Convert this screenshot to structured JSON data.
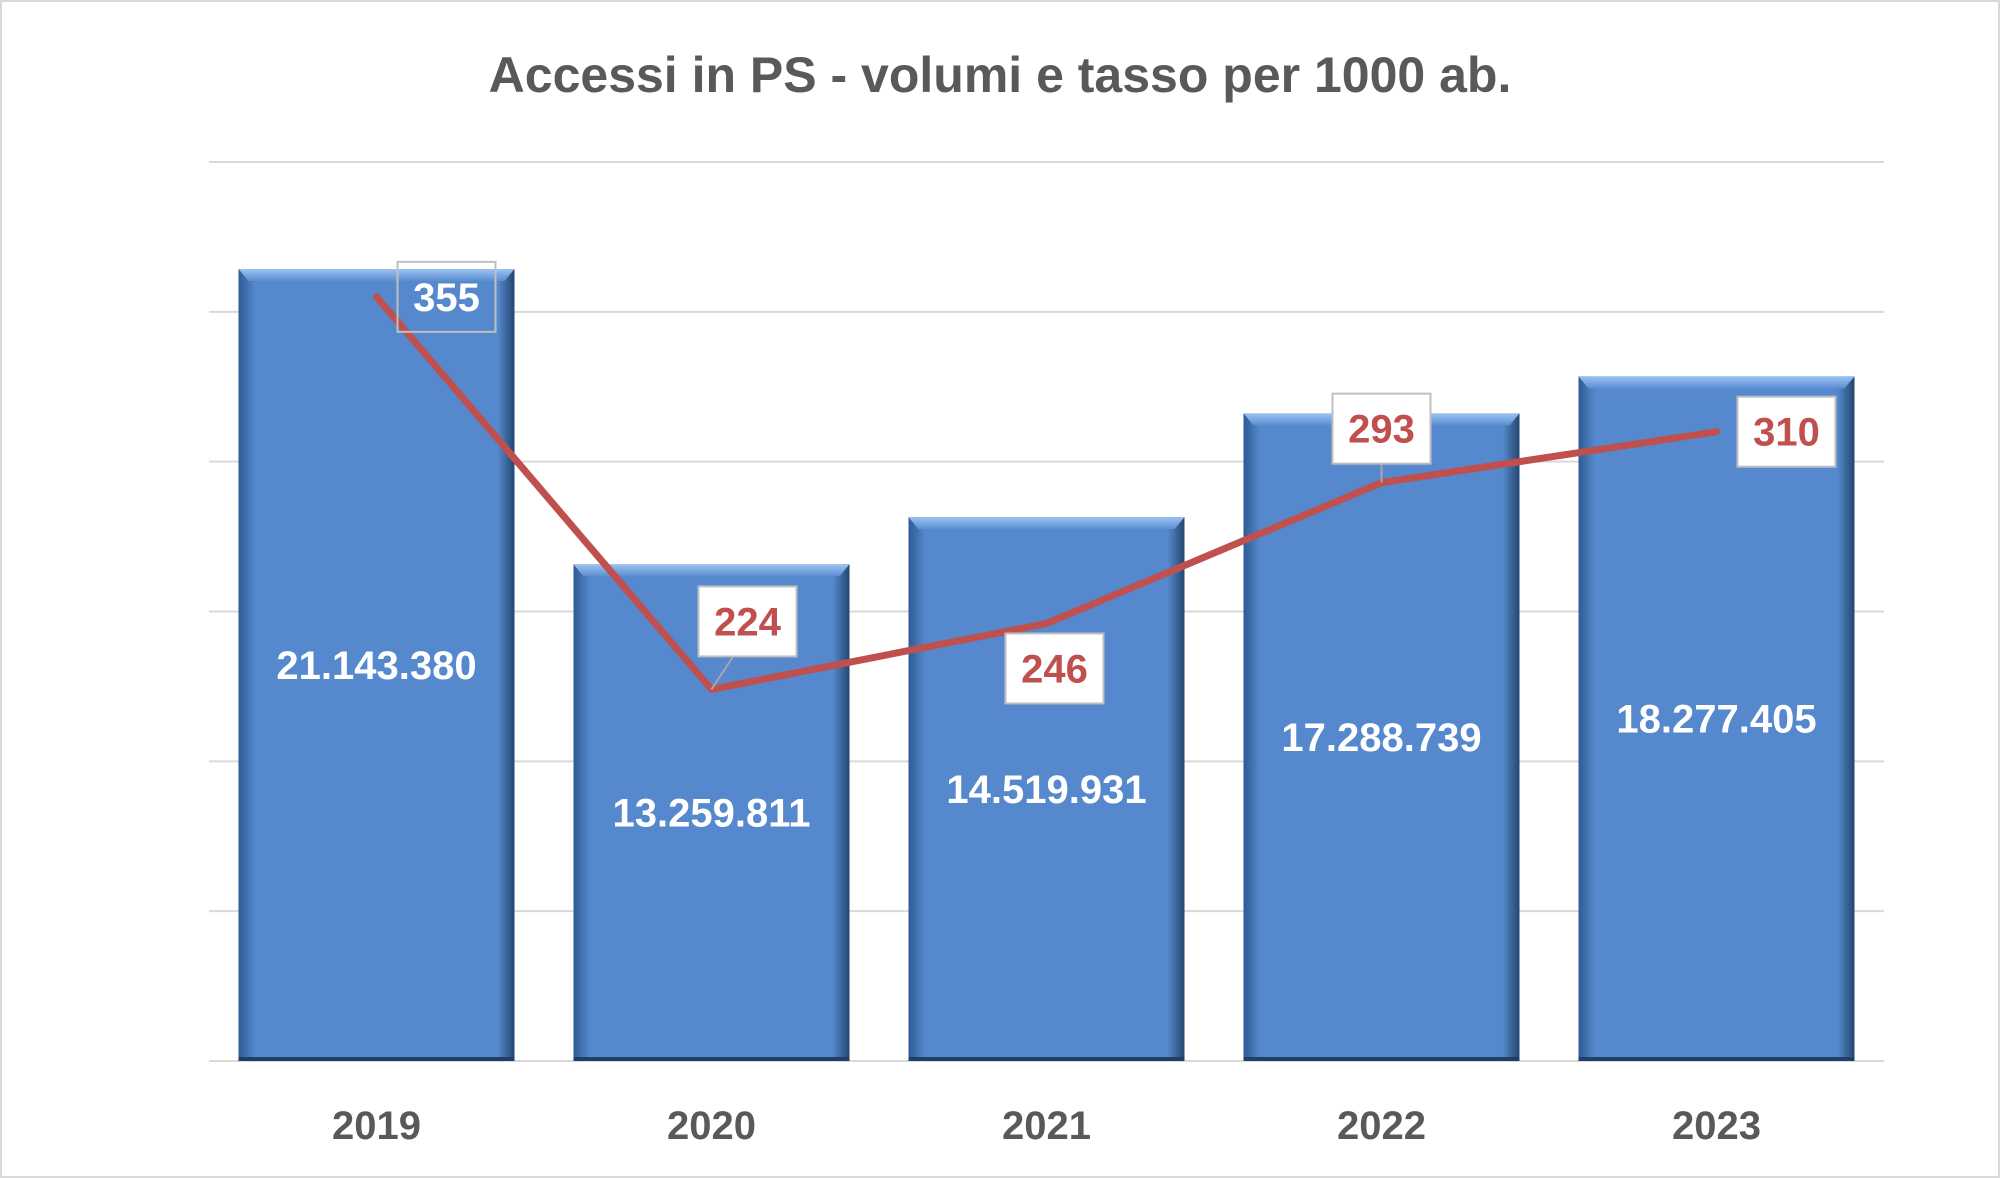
{
  "chart_data": {
    "type": "bar",
    "title": "Accessi in PS - volumi e tasso per 1000 ab.",
    "categories": [
      "2019",
      "2020",
      "2021",
      "2022",
      "2023"
    ],
    "series": [
      {
        "type": "bar",
        "values": [
          21143380,
          13259811,
          14519931,
          17288739,
          18277405
        ],
        "labels": [
          "21.143.380",
          "13.259.811",
          "14.519.931",
          "17.288.739",
          "18.277.405"
        ],
        "color": "#5588cc"
      },
      {
        "type": "line",
        "values": [
          355,
          224,
          246,
          293,
          310
        ],
        "labels": [
          "355",
          "224",
          "246",
          "293",
          "310"
        ],
        "color": "#c0504d"
      }
    ],
    "bar_axis_range": [
      0,
      24000000
    ],
    "line_axis_range": [
      100,
      400
    ],
    "gridlines": true,
    "axis_values_shown": false,
    "legend": "none"
  }
}
